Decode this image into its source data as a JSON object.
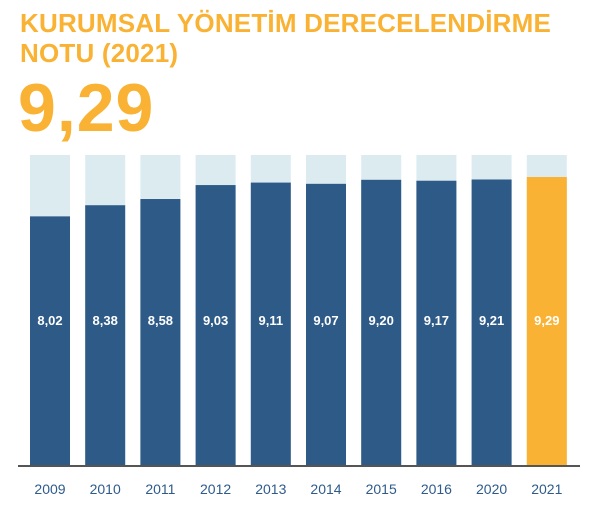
{
  "header": {
    "title": "KURUMSAL YÖNETİM DERECELENDİRME NOTU (2021)",
    "value": "9,29"
  },
  "colors": {
    "title": "#f9b233",
    "bar": "#2e5a87",
    "bar_highlight": "#f9b233",
    "track": "#dcebef",
    "axis": "#555555",
    "tick_label": "#2e5b8c",
    "bar_label": "#ffffff"
  },
  "chart_data": {
    "type": "bar",
    "categories": [
      "2009",
      "2010",
      "2011",
      "2012",
      "2013",
      "2014",
      "2015",
      "2016",
      "2020",
      "2021"
    ],
    "values": [
      8.02,
      8.38,
      8.58,
      9.03,
      9.11,
      9.07,
      9.2,
      9.17,
      9.21,
      9.29
    ],
    "value_labels": [
      "8,02",
      "8,38",
      "8,58",
      "9,03",
      "9,11",
      "9,07",
      "9,20",
      "9,17",
      "9,21",
      "9,29"
    ],
    "highlight_index": 9,
    "title": "KURUMSAL YÖNETİM DERECELENDİRME NOTU (2021)",
    "xlabel": "",
    "ylabel": "",
    "ylim": [
      0,
      10
    ],
    "grid": false,
    "legend": "none"
  }
}
